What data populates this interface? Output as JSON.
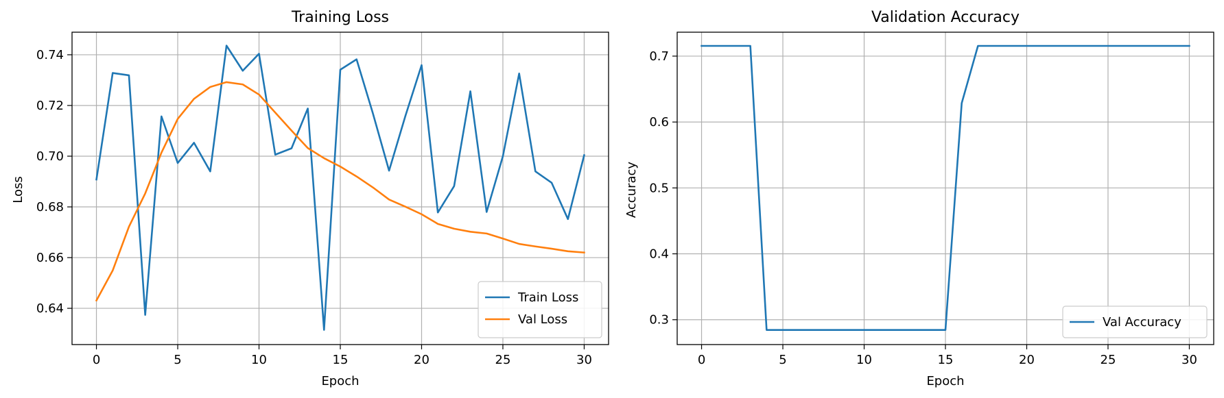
{
  "chart_data": [
    {
      "type": "line",
      "title": "Training Loss",
      "xlabel": "Epoch",
      "ylabel": "Loss",
      "xlim": [
        -1.5,
        31.5
      ],
      "ylim": [
        0.6257,
        0.7489
      ],
      "xticks": [
        0,
        5,
        10,
        15,
        20,
        25,
        30
      ],
      "yticks": [
        0.64,
        0.66,
        0.68,
        0.7,
        0.72,
        0.74
      ],
      "ytick_decimals": 2,
      "grid": true,
      "legend_position": "lower-right",
      "x": [
        0,
        1,
        2,
        3,
        4,
        5,
        6,
        7,
        8,
        9,
        10,
        11,
        12,
        13,
        14,
        15,
        16,
        17,
        18,
        19,
        20,
        21,
        22,
        23,
        24,
        25,
        26,
        27,
        28,
        29,
        30
      ],
      "series": [
        {
          "name": "Train Loss",
          "color": "#1f77b4",
          "values": [
            0.6908,
            0.7328,
            0.7319,
            0.6374,
            0.7157,
            0.6973,
            0.7053,
            0.694,
            0.7436,
            0.7337,
            0.7404,
            0.7006,
            0.7031,
            0.7188,
            0.6315,
            0.7341,
            0.7382,
            0.717,
            0.6943,
            0.7158,
            0.7359,
            0.6778,
            0.6882,
            0.7256,
            0.678,
            0.7,
            0.7326,
            0.694,
            0.6895,
            0.6752,
            0.7004
          ]
        },
        {
          "name": "Val Loss",
          "color": "#ff7f0e",
          "values": [
            0.6431,
            0.6549,
            0.6722,
            0.6853,
            0.7014,
            0.7147,
            0.7226,
            0.7273,
            0.7292,
            0.7283,
            0.7243,
            0.7172,
            0.7101,
            0.7032,
            0.6992,
            0.6959,
            0.692,
            0.6877,
            0.6829,
            0.6801,
            0.6771,
            0.6733,
            0.6714,
            0.6702,
            0.6695,
            0.6675,
            0.6654,
            0.6644,
            0.6635,
            0.6625,
            0.662
          ]
        }
      ]
    },
    {
      "type": "line",
      "title": "Validation Accuracy",
      "xlabel": "Epoch",
      "ylabel": "Accuracy",
      "xlim": [
        -1.5,
        31.5
      ],
      "ylim": [
        0.2623,
        0.7363
      ],
      "xticks": [
        0,
        5,
        10,
        15,
        20,
        25,
        30
      ],
      "yticks": [
        0.3,
        0.4,
        0.5,
        0.6,
        0.7
      ],
      "ytick_decimals": 1,
      "grid": true,
      "legend_position": "lower-right",
      "x": [
        0,
        1,
        2,
        3,
        4,
        5,
        6,
        7,
        8,
        9,
        10,
        11,
        12,
        13,
        14,
        15,
        16,
        17,
        18,
        19,
        20,
        21,
        22,
        23,
        24,
        25,
        26,
        27,
        28,
        29,
        30
      ],
      "series": [
        {
          "name": "Val Accuracy",
          "color": "#1f77b4",
          "values": [
            0.7155,
            0.7155,
            0.7155,
            0.7155,
            0.2845,
            0.2845,
            0.2845,
            0.2845,
            0.2845,
            0.2845,
            0.2845,
            0.2845,
            0.2845,
            0.2845,
            0.2845,
            0.2845,
            0.6286,
            0.7155,
            0.7155,
            0.7155,
            0.7155,
            0.7155,
            0.7155,
            0.7155,
            0.7155,
            0.7155,
            0.7155,
            0.7155,
            0.7155,
            0.7155,
            0.7155
          ]
        }
      ]
    }
  ]
}
